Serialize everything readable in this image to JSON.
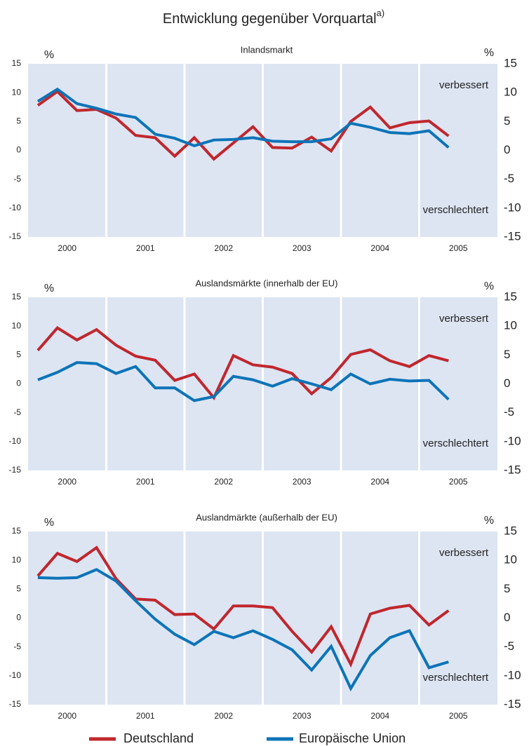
{
  "title": "Entwicklung gegenüber Vorquartal",
  "title_sup": "a)",
  "chart_data": [
    {
      "type": "line",
      "title": "Inlandsmarkt",
      "ylabel": "%",
      "x": [
        2000.125,
        2000.375,
        2000.625,
        2000.875,
        2001.125,
        2001.375,
        2001.625,
        2001.875,
        2002.125,
        2002.375,
        2002.625,
        2002.875,
        2003.125,
        2003.375,
        2003.625,
        2003.875,
        2004.125,
        2004.375,
        2004.625,
        2004.875,
        2005.125,
        2005.375
      ],
      "series": [
        {
          "name": "Deutschland",
          "color": "#c0272d",
          "values": [
            7.8,
            10.2,
            6.9,
            7.1,
            5.6,
            2.6,
            2.2,
            -1.0,
            2.2,
            -1.5,
            1.3,
            4.1,
            0.5,
            0.4,
            2.3,
            -0.1,
            5.0,
            7.5,
            3.9,
            4.8,
            5.1,
            2.5
          ]
        },
        {
          "name": "Europäische Union",
          "color": "#0d74b8",
          "values": [
            8.5,
            10.6,
            8.1,
            7.3,
            6.3,
            5.7,
            2.8,
            2.1,
            0.8,
            1.8,
            1.9,
            2.2,
            1.6,
            1.5,
            1.5,
            2.0,
            4.7,
            4.0,
            3.1,
            2.9,
            3.4,
            0.5
          ]
        }
      ],
      "xlim": [
        2000,
        2006
      ],
      "xticks": [
        {
          "value": 2000.5,
          "label": "2000"
        },
        {
          "value": 2001.5,
          "label": "2001"
        },
        {
          "value": 2002.5,
          "label": "2002"
        },
        {
          "value": 2003.5,
          "label": "2003"
        },
        {
          "value": 2004.5,
          "label": "2004"
        },
        {
          "value": 2005.5,
          "label": "2005"
        }
      ],
      "xgrid": [
        2001,
        2002,
        2003,
        2004,
        2005
      ],
      "ylim": [
        -15,
        15
      ],
      "yticks": [
        -15,
        -10,
        -5,
        0,
        5,
        10,
        15
      ],
      "annotations": [
        "verbessert",
        "verschlechtert"
      ]
    },
    {
      "type": "line",
      "title": "Auslandsmärkte (innerhalb der EU)",
      "ylabel": "%",
      "x": [
        2000.125,
        2000.375,
        2000.625,
        2000.875,
        2001.125,
        2001.375,
        2001.625,
        2001.875,
        2002.125,
        2002.375,
        2002.625,
        2002.875,
        2003.125,
        2003.375,
        2003.625,
        2003.875,
        2004.125,
        2004.375,
        2004.625,
        2004.875,
        2005.125,
        2005.375
      ],
      "series": [
        {
          "color": "#c0272d",
          "values": [
            5.8,
            9.7,
            7.6,
            9.4,
            6.7,
            4.8,
            4.1,
            0.6,
            1.7,
            -2.4,
            4.9,
            3.3,
            2.9,
            1.8,
            -1.7,
            1.1,
            5.1,
            5.9,
            4.0,
            3.0,
            4.9,
            4.0
          ]
        },
        {
          "color": "#0d74b8",
          "values": [
            0.7,
            2.0,
            3.7,
            3.5,
            1.8,
            3.0,
            -0.7,
            -0.7,
            -2.9,
            -2.2,
            1.3,
            0.7,
            -0.4,
            0.9,
            0.0,
            -1.0,
            1.7,
            0.0,
            0.8,
            0.5,
            0.6,
            -2.7
          ]
        }
      ],
      "xlim": [
        2000,
        2006
      ],
      "xticks": [
        {
          "value": 2000.5,
          "label": "2000"
        },
        {
          "value": 2001.5,
          "label": "2001"
        },
        {
          "value": 2002.5,
          "label": "2002"
        },
        {
          "value": 2003.5,
          "label": "2003"
        },
        {
          "value": 2004.5,
          "label": "2004"
        },
        {
          "value": 2005.5,
          "label": "2005"
        }
      ],
      "xgrid": [
        2001,
        2002,
        2003,
        2004,
        2005
      ],
      "ylim": [
        -15,
        15
      ],
      "yticks": [
        -15,
        -10,
        -5,
        0,
        5,
        10,
        15
      ],
      "annotations": [
        "verbessert",
        "verschlechtert"
      ]
    },
    {
      "type": "line",
      "title": "Auslandmärkte (außerhalb der EU)",
      "ylabel": "%",
      "x": [
        2000.125,
        2000.375,
        2000.625,
        2000.875,
        2001.125,
        2001.375,
        2001.625,
        2001.875,
        2002.125,
        2002.375,
        2002.625,
        2002.875,
        2003.125,
        2003.375,
        2003.625,
        2003.875,
        2004.125,
        2004.375,
        2004.625,
        2004.875,
        2005.125,
        2005.375
      ],
      "series": [
        {
          "color": "#c0272d",
          "values": [
            7.3,
            11.2,
            9.8,
            12.2,
            6.8,
            3.3,
            3.1,
            0.6,
            0.7,
            -1.9,
            2.1,
            2.1,
            1.8,
            -2.3,
            -5.9,
            -1.5,
            -8.0,
            0.7,
            1.7,
            2.2,
            -1.2,
            1.3
          ]
        },
        {
          "color": "#0d74b8",
          "values": [
            7.0,
            6.9,
            7.0,
            8.4,
            6.4,
            3.0,
            -0.2,
            -2.8,
            -4.6,
            -2.3,
            -3.4,
            -2.2,
            -3.7,
            -5.5,
            -9.0,
            -4.9,
            -12.2,
            -6.5,
            -3.4,
            -2.2,
            -8.6,
            -7.6
          ]
        }
      ],
      "xlim": [
        2000,
        2006
      ],
      "xticks": [
        {
          "value": 2000.5,
          "label": "2000"
        },
        {
          "value": 2001.5,
          "label": "2001"
        },
        {
          "value": 2002.5,
          "label": "2002"
        },
        {
          "value": 2003.5,
          "label": "2003"
        },
        {
          "value": 2004.5,
          "label": "2004"
        },
        {
          "value": 2005.5,
          "label": "2005"
        }
      ],
      "xgrid": [
        2001,
        2002,
        2003,
        2004,
        2005
      ],
      "ylim": [
        -15,
        15
      ],
      "yticks": [
        -15,
        -10,
        -5,
        0,
        5,
        10,
        15
      ],
      "annotations": [
        "verbessert",
        "verschlechtert"
      ]
    }
  ]
}
